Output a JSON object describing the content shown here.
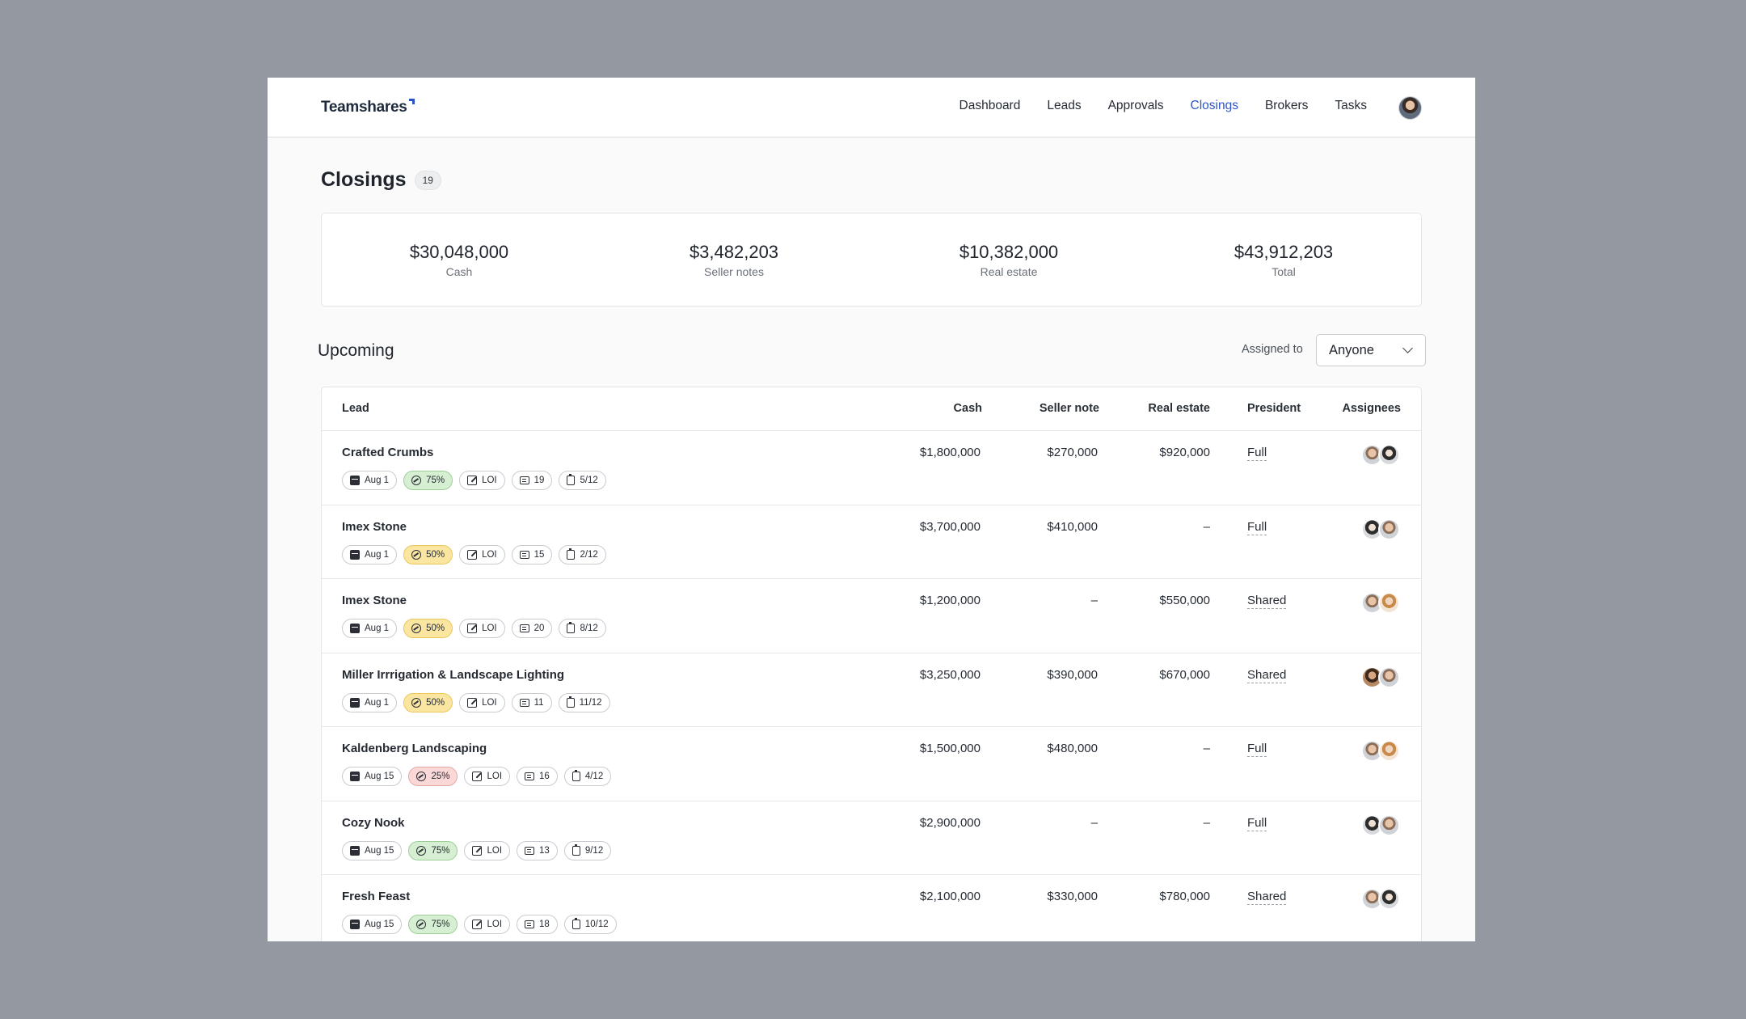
{
  "brand": {
    "name": "Teamshares"
  },
  "nav": {
    "items": [
      "Dashboard",
      "Leads",
      "Approvals",
      "Closings",
      "Brokers",
      "Tasks"
    ],
    "active": "Closings"
  },
  "page": {
    "title": "Closings",
    "count": "19"
  },
  "summary": [
    {
      "value": "$30,048,000",
      "label": "Cash"
    },
    {
      "value": "$3,482,203",
      "label": "Seller notes"
    },
    {
      "value": "$10,382,000",
      "label": "Real estate"
    },
    {
      "value": "$43,912,203",
      "label": "Total"
    }
  ],
  "upcoming": {
    "title": "Upcoming",
    "filter_label": "Assigned to",
    "filter_value": "Anyone",
    "columns": [
      "Lead",
      "Cash",
      "Seller note",
      "Real estate",
      "President",
      "Assignees"
    ],
    "rows": [
      {
        "name": "Crafted Crumbs",
        "date": "Aug 1",
        "prob": "75%",
        "prob_color": "green",
        "loi": "LOI",
        "comments": "19",
        "tasks": "5/12",
        "cash": "$1,800,000",
        "seller_note": "$270,000",
        "real_estate": "$920,000",
        "president": "Full",
        "avatars": [
          "a1",
          "a2"
        ]
      },
      {
        "name": "Imex Stone",
        "date": "Aug 1",
        "prob": "50%",
        "prob_color": "yellow",
        "loi": "LOI",
        "comments": "15",
        "tasks": "2/12",
        "cash": "$3,700,000",
        "seller_note": "$410,000",
        "real_estate": "–",
        "president": "Full",
        "avatars": [
          "a2",
          "a1"
        ]
      },
      {
        "name": "Imex Stone",
        "date": "Aug 1",
        "prob": "50%",
        "prob_color": "yellow",
        "loi": "LOI",
        "comments": "20",
        "tasks": "8/12",
        "cash": "$1,200,000",
        "seller_note": "–",
        "real_estate": "$550,000",
        "president": "Shared",
        "avatars": [
          "a1",
          "a4"
        ]
      },
      {
        "name": "Miller Irrrigation & Landscape Lighting",
        "date": "Aug 1",
        "prob": "50%",
        "prob_color": "yellow",
        "loi": "LOI",
        "comments": "11",
        "tasks": "11/12",
        "cash": "$3,250,000",
        "seller_note": "$390,000",
        "real_estate": "$670,000",
        "president": "Shared",
        "avatars": [
          "a3",
          "a1"
        ]
      },
      {
        "name": "Kaldenberg Landscaping",
        "date": "Aug 15",
        "prob": "25%",
        "prob_color": "red",
        "loi": "LOI",
        "comments": "16",
        "tasks": "4/12",
        "cash": "$1,500,000",
        "seller_note": "$480,000",
        "real_estate": "–",
        "president": "Full",
        "avatars": [
          "a1",
          "a4"
        ]
      },
      {
        "name": "Cozy Nook",
        "date": "Aug 15",
        "prob": "75%",
        "prob_color": "green",
        "loi": "LOI",
        "comments": "13",
        "tasks": "9/12",
        "cash": "$2,900,000",
        "seller_note": "–",
        "real_estate": "–",
        "president": "Full",
        "avatars": [
          "a2",
          "a1"
        ]
      },
      {
        "name": "Fresh Feast",
        "date": "Aug 15",
        "prob": "75%",
        "prob_color": "green",
        "loi": "LOI",
        "comments": "18",
        "tasks": "10/12",
        "cash": "$2,100,000",
        "seller_note": "$330,000",
        "real_estate": "$780,000",
        "president": "Shared",
        "avatars": [
          "a1",
          "a2"
        ]
      }
    ]
  }
}
